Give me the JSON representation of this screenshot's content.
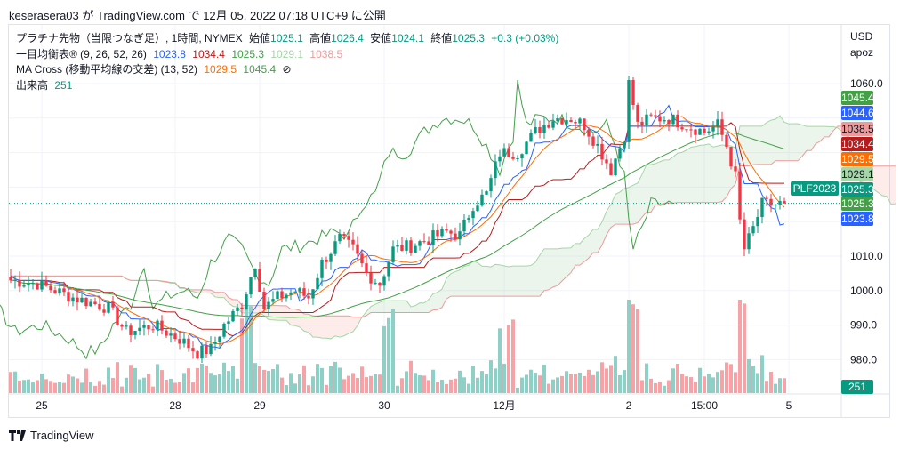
{
  "header": {
    "published": "keserasera03 が TradingView.com で 12月 05, 2022 07:18 UTC+9 に公開"
  },
  "legend": {
    "symbol": "プラチナ先物（当限つなぎ足）, 1時間, NYMEX",
    "open_label": "始値",
    "open": "1025.1",
    "high_label": "高値",
    "high": "1026.4",
    "low_label": "安値",
    "low": "1024.1",
    "close_label": "終値",
    "close": "1025.3",
    "change": "+0.3 (+0.03%)",
    "ichimoku": {
      "name": "一目均衡表® (9, 26, 52, 26)",
      "v1": "1023.8",
      "v2": "1034.4",
      "v3": "1025.3",
      "v4": "1029.1",
      "v5": "1038.5"
    },
    "ma": {
      "name": "MA Cross (移動平均線の交差) (13, 52)",
      "v1": "1029.5",
      "v2": "1045.4",
      "icon": "⊘"
    },
    "volume": {
      "name": "出来高",
      "v": "251"
    }
  },
  "axis": {
    "currency": "USD",
    "mode": "apoz",
    "symbol_tag": "PLF2023"
  },
  "price_tags": [
    {
      "v": "1045.4",
      "color": "#43a047",
      "text": "#fff"
    },
    {
      "v": "1044.6",
      "color": "#2962ff",
      "text": "#fff"
    },
    {
      "v": "1038.5",
      "color": "#ef9a9a",
      "text": "#131722"
    },
    {
      "v": "1034.4",
      "color": "#b71c1c",
      "text": "#fff"
    },
    {
      "v": "1029.5",
      "color": "#ff6d00",
      "text": "#fff"
    },
    {
      "v": "1029.1",
      "color": "#a5d6a7",
      "text": "#131722"
    },
    {
      "v": "1025.3",
      "color": "#089981",
      "text": "#fff"
    },
    {
      "v": "1025.3",
      "color": "#43a047",
      "text": "#fff"
    },
    {
      "v": "1023.8",
      "color": "#2962ff",
      "text": "#fff"
    }
  ],
  "volume_tag": "251",
  "brand": "TradingView",
  "colors": {
    "up": "#089981",
    "down": "#f23645",
    "vol_up": "#8fd0c6",
    "vol_down": "#f5a3a6",
    "tenkan": "#2962ff",
    "kijun": "#b71c1c",
    "lagging": "#43a047",
    "spanA": "#a5d6a7",
    "spanB": "#ef9a9a",
    "ma_fast": "#ff6d00",
    "ma_slow": "#43a047"
  },
  "chart_data": {
    "type": "candlestick",
    "title": "プラチナ先物（当限つなぎ足）, 1時間, NYMEX",
    "ylim": [
      970,
      1070
    ],
    "yticks": [
      1060,
      1010,
      1000,
      990,
      980
    ],
    "xticks": [
      {
        "label": "25",
        "bar": 7
      },
      {
        "label": "28",
        "bar": 37
      },
      {
        "label": "29",
        "bar": 56
      },
      {
        "label": "30",
        "bar": 84
      },
      {
        "label": "12月",
        "bar": 111
      },
      {
        "label": "2",
        "bar": 139
      },
      {
        "label": "15:00",
        "bar": 156
      },
      {
        "label": "5",
        "bar": 175
      }
    ],
    "close_keypoints": [
      [
        0,
        1003
      ],
      [
        6,
        1002
      ],
      [
        14,
        998
      ],
      [
        22,
        995
      ],
      [
        26,
        988
      ],
      [
        32,
        990
      ],
      [
        38,
        986
      ],
      [
        42,
        982
      ],
      [
        45,
        983
      ],
      [
        48,
        990
      ],
      [
        52,
        996
      ],
      [
        55,
        1008
      ],
      [
        57,
        995
      ],
      [
        60,
        998
      ],
      [
        64,
        1000
      ],
      [
        67,
        998
      ],
      [
        70,
        1008
      ],
      [
        74,
        1015
      ],
      [
        77,
        1012
      ],
      [
        80,
        1005
      ],
      [
        83,
        1002
      ],
      [
        86,
        1012
      ],
      [
        90,
        1013
      ],
      [
        94,
        1015
      ],
      [
        98,
        1017
      ],
      [
        101,
        1016
      ],
      [
        104,
        1025
      ],
      [
        107,
        1028
      ],
      [
        110,
        1040
      ],
      [
        114,
        1040
      ],
      [
        118,
        1046
      ],
      [
        122,
        1050
      ],
      [
        126,
        1050
      ],
      [
        129,
        1048
      ],
      [
        132,
        1042
      ],
      [
        135,
        1035
      ],
      [
        138,
        1045
      ],
      [
        139,
        1060
      ],
      [
        141,
        1048
      ],
      [
        144,
        1050
      ],
      [
        148,
        1050
      ],
      [
        152,
        1048
      ],
      [
        156,
        1046
      ],
      [
        159,
        1048
      ],
      [
        161,
        1042
      ],
      [
        163,
        1033
      ],
      [
        164,
        1020
      ],
      [
        165,
        1012
      ],
      [
        167,
        1018
      ],
      [
        169,
        1025
      ],
      [
        172,
        1025
      ],
      [
        174,
        1025.3
      ]
    ],
    "last_close": 1025.3,
    "last_volume": 251
  }
}
